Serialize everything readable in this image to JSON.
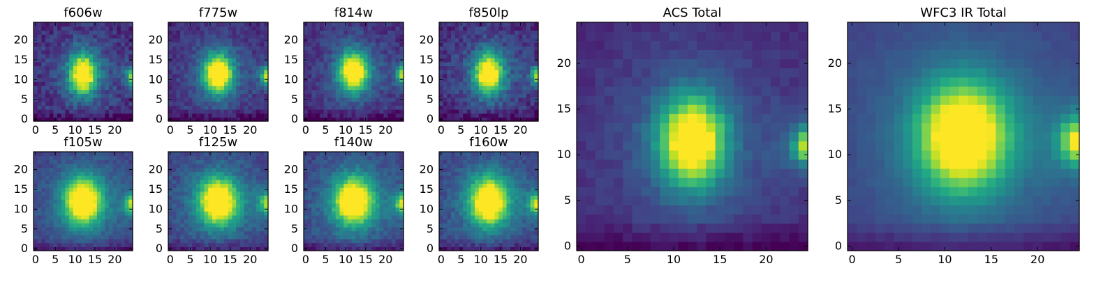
{
  "chart_data": [
    {
      "type": "heatmap",
      "title": "f606w",
      "xlim": [
        -0.5,
        24.5
      ],
      "ylim": [
        -0.5,
        24.5
      ],
      "xticks": [
        "0",
        "5",
        "10",
        "15",
        "20"
      ],
      "yticks": [
        "0",
        "5",
        "10",
        "15",
        "20"
      ],
      "colormap": "viridis",
      "sources": [
        {
          "x": 12,
          "y": 11.5,
          "peak": 1.0,
          "sx": 2.3,
          "sy": 3.4
        },
        {
          "x": 24.5,
          "y": 11,
          "peak": 0.65,
          "sx": 1.1,
          "sy": 1.4
        }
      ],
      "background": 0.12,
      "noise": 0.1
    },
    {
      "type": "heatmap",
      "title": "f775w",
      "xlim": [
        -0.5,
        24.5
      ],
      "ylim": [
        -0.5,
        24.5
      ],
      "xticks": [
        "0",
        "5",
        "10",
        "15",
        "20"
      ],
      "yticks": [
        "0",
        "5",
        "10",
        "15",
        "20"
      ],
      "colormap": "viridis",
      "sources": [
        {
          "x": 12,
          "y": 11.5,
          "peak": 1.0,
          "sx": 2.5,
          "sy": 3.4
        },
        {
          "x": 24.5,
          "y": 11,
          "peak": 0.75,
          "sx": 1.1,
          "sy": 1.4
        }
      ],
      "background": 0.12,
      "noise": 0.08
    },
    {
      "type": "heatmap",
      "title": "f814w",
      "xlim": [
        -0.5,
        24.5
      ],
      "ylim": [
        -0.5,
        24.5
      ],
      "xticks": [
        "0",
        "5",
        "10",
        "15",
        "20"
      ],
      "yticks": [
        "0",
        "5",
        "10",
        "15",
        "20"
      ],
      "colormap": "viridis",
      "sources": [
        {
          "x": 12,
          "y": 12,
          "peak": 1.0,
          "sx": 2.5,
          "sy": 3.4
        },
        {
          "x": 24.5,
          "y": 11.5,
          "peak": 0.75,
          "sx": 1.1,
          "sy": 1.4
        }
      ],
      "background": 0.12,
      "noise": 0.08
    },
    {
      "type": "heatmap",
      "title": "f850lp",
      "xlim": [
        -0.5,
        24.5
      ],
      "ylim": [
        -0.5,
        24.5
      ],
      "xticks": [
        "0",
        "5",
        "10",
        "15",
        "20"
      ],
      "yticks": [
        "0",
        "5",
        "10",
        "15",
        "20"
      ],
      "colormap": "viridis",
      "sources": [
        {
          "x": 12,
          "y": 11.5,
          "peak": 1.0,
          "sx": 2.4,
          "sy": 3.4
        },
        {
          "x": 24.5,
          "y": 11,
          "peak": 0.7,
          "sx": 1.1,
          "sy": 1.4
        }
      ],
      "background": 0.12,
      "noise": 0.1
    },
    {
      "type": "heatmap",
      "title": "f105w",
      "xlim": [
        -0.5,
        24.5
      ],
      "ylim": [
        -0.5,
        24.5
      ],
      "xticks": [
        "0",
        "5",
        "10",
        "15",
        "20"
      ],
      "yticks": [
        "0",
        "5",
        "10",
        "15",
        "20"
      ],
      "colormap": "viridis",
      "sources": [
        {
          "x": 12,
          "y": 12,
          "peak": 1.0,
          "sx": 3.2,
          "sy": 4.0
        },
        {
          "x": 24.5,
          "y": 11.5,
          "peak": 0.6,
          "sx": 1.4,
          "sy": 1.7
        }
      ],
      "background": 0.18,
      "noise": 0.06
    },
    {
      "type": "heatmap",
      "title": "f125w",
      "xlim": [
        -0.5,
        24.5
      ],
      "ylim": [
        -0.5,
        24.5
      ],
      "xticks": [
        "0",
        "5",
        "10",
        "15",
        "20"
      ],
      "yticks": [
        "0",
        "5",
        "10",
        "15",
        "20"
      ],
      "colormap": "viridis",
      "sources": [
        {
          "x": 12,
          "y": 12,
          "peak": 1.0,
          "sx": 3.3,
          "sy": 4.0
        },
        {
          "x": 24.5,
          "y": 11.5,
          "peak": 0.6,
          "sx": 1.4,
          "sy": 1.7
        }
      ],
      "background": 0.18,
      "noise": 0.07
    },
    {
      "type": "heatmap",
      "title": "f140w",
      "xlim": [
        -0.5,
        24.5
      ],
      "ylim": [
        -0.5,
        24.5
      ],
      "xticks": [
        "0",
        "5",
        "10",
        "15",
        "20"
      ],
      "yticks": [
        "0",
        "5",
        "10",
        "15",
        "20"
      ],
      "colormap": "viridis",
      "sources": [
        {
          "x": 12,
          "y": 12,
          "peak": 1.0,
          "sx": 3.3,
          "sy": 4.1
        },
        {
          "x": 24.5,
          "y": 11.5,
          "peak": 0.65,
          "sx": 1.4,
          "sy": 1.7
        }
      ],
      "background": 0.18,
      "noise": 0.07
    },
    {
      "type": "heatmap",
      "title": "f160w",
      "xlim": [
        -0.5,
        24.5
      ],
      "ylim": [
        -0.5,
        24.5
      ],
      "xticks": [
        "0",
        "5",
        "10",
        "15",
        "20"
      ],
      "yticks": [
        "0",
        "5",
        "10",
        "15",
        "20"
      ],
      "colormap": "viridis",
      "sources": [
        {
          "x": 12,
          "y": 12,
          "peak": 1.0,
          "sx": 3.3,
          "sy": 4.1
        },
        {
          "x": 24.5,
          "y": 11.5,
          "peak": 0.7,
          "sx": 1.4,
          "sy": 1.7
        }
      ],
      "background": 0.18,
      "noise": 0.07
    },
    {
      "type": "heatmap",
      "title": "ACS Total",
      "xlim": [
        -0.5,
        24.5
      ],
      "ylim": [
        -0.5,
        24.5
      ],
      "xticks": [
        "0",
        "5",
        "10",
        "15",
        "20"
      ],
      "yticks": [
        "0",
        "5",
        "10",
        "15",
        "20"
      ],
      "colormap": "viridis",
      "sources": [
        {
          "x": 12,
          "y": 11.5,
          "peak": 1.0,
          "sx": 2.4,
          "sy": 3.3
        },
        {
          "x": 24.5,
          "y": 11,
          "peak": 0.7,
          "sx": 1.1,
          "sy": 1.4
        }
      ],
      "background": 0.12,
      "noise": 0.04
    },
    {
      "type": "heatmap",
      "title": "WFC3 IR Total",
      "xlim": [
        -0.5,
        24.5
      ],
      "ylim": [
        -0.5,
        24.5
      ],
      "xticks": [
        "0",
        "5",
        "10",
        "15",
        "20"
      ],
      "yticks": [
        "0",
        "5",
        "10",
        "15",
        "20"
      ],
      "colormap": "viridis",
      "sources": [
        {
          "x": 12,
          "y": 12,
          "peak": 1.0,
          "sx": 3.3,
          "sy": 4.0
        },
        {
          "x": 24.5,
          "y": 11.5,
          "peak": 0.7,
          "sx": 1.4,
          "sy": 1.7
        }
      ],
      "background": 0.18,
      "noise": 0.02
    }
  ]
}
